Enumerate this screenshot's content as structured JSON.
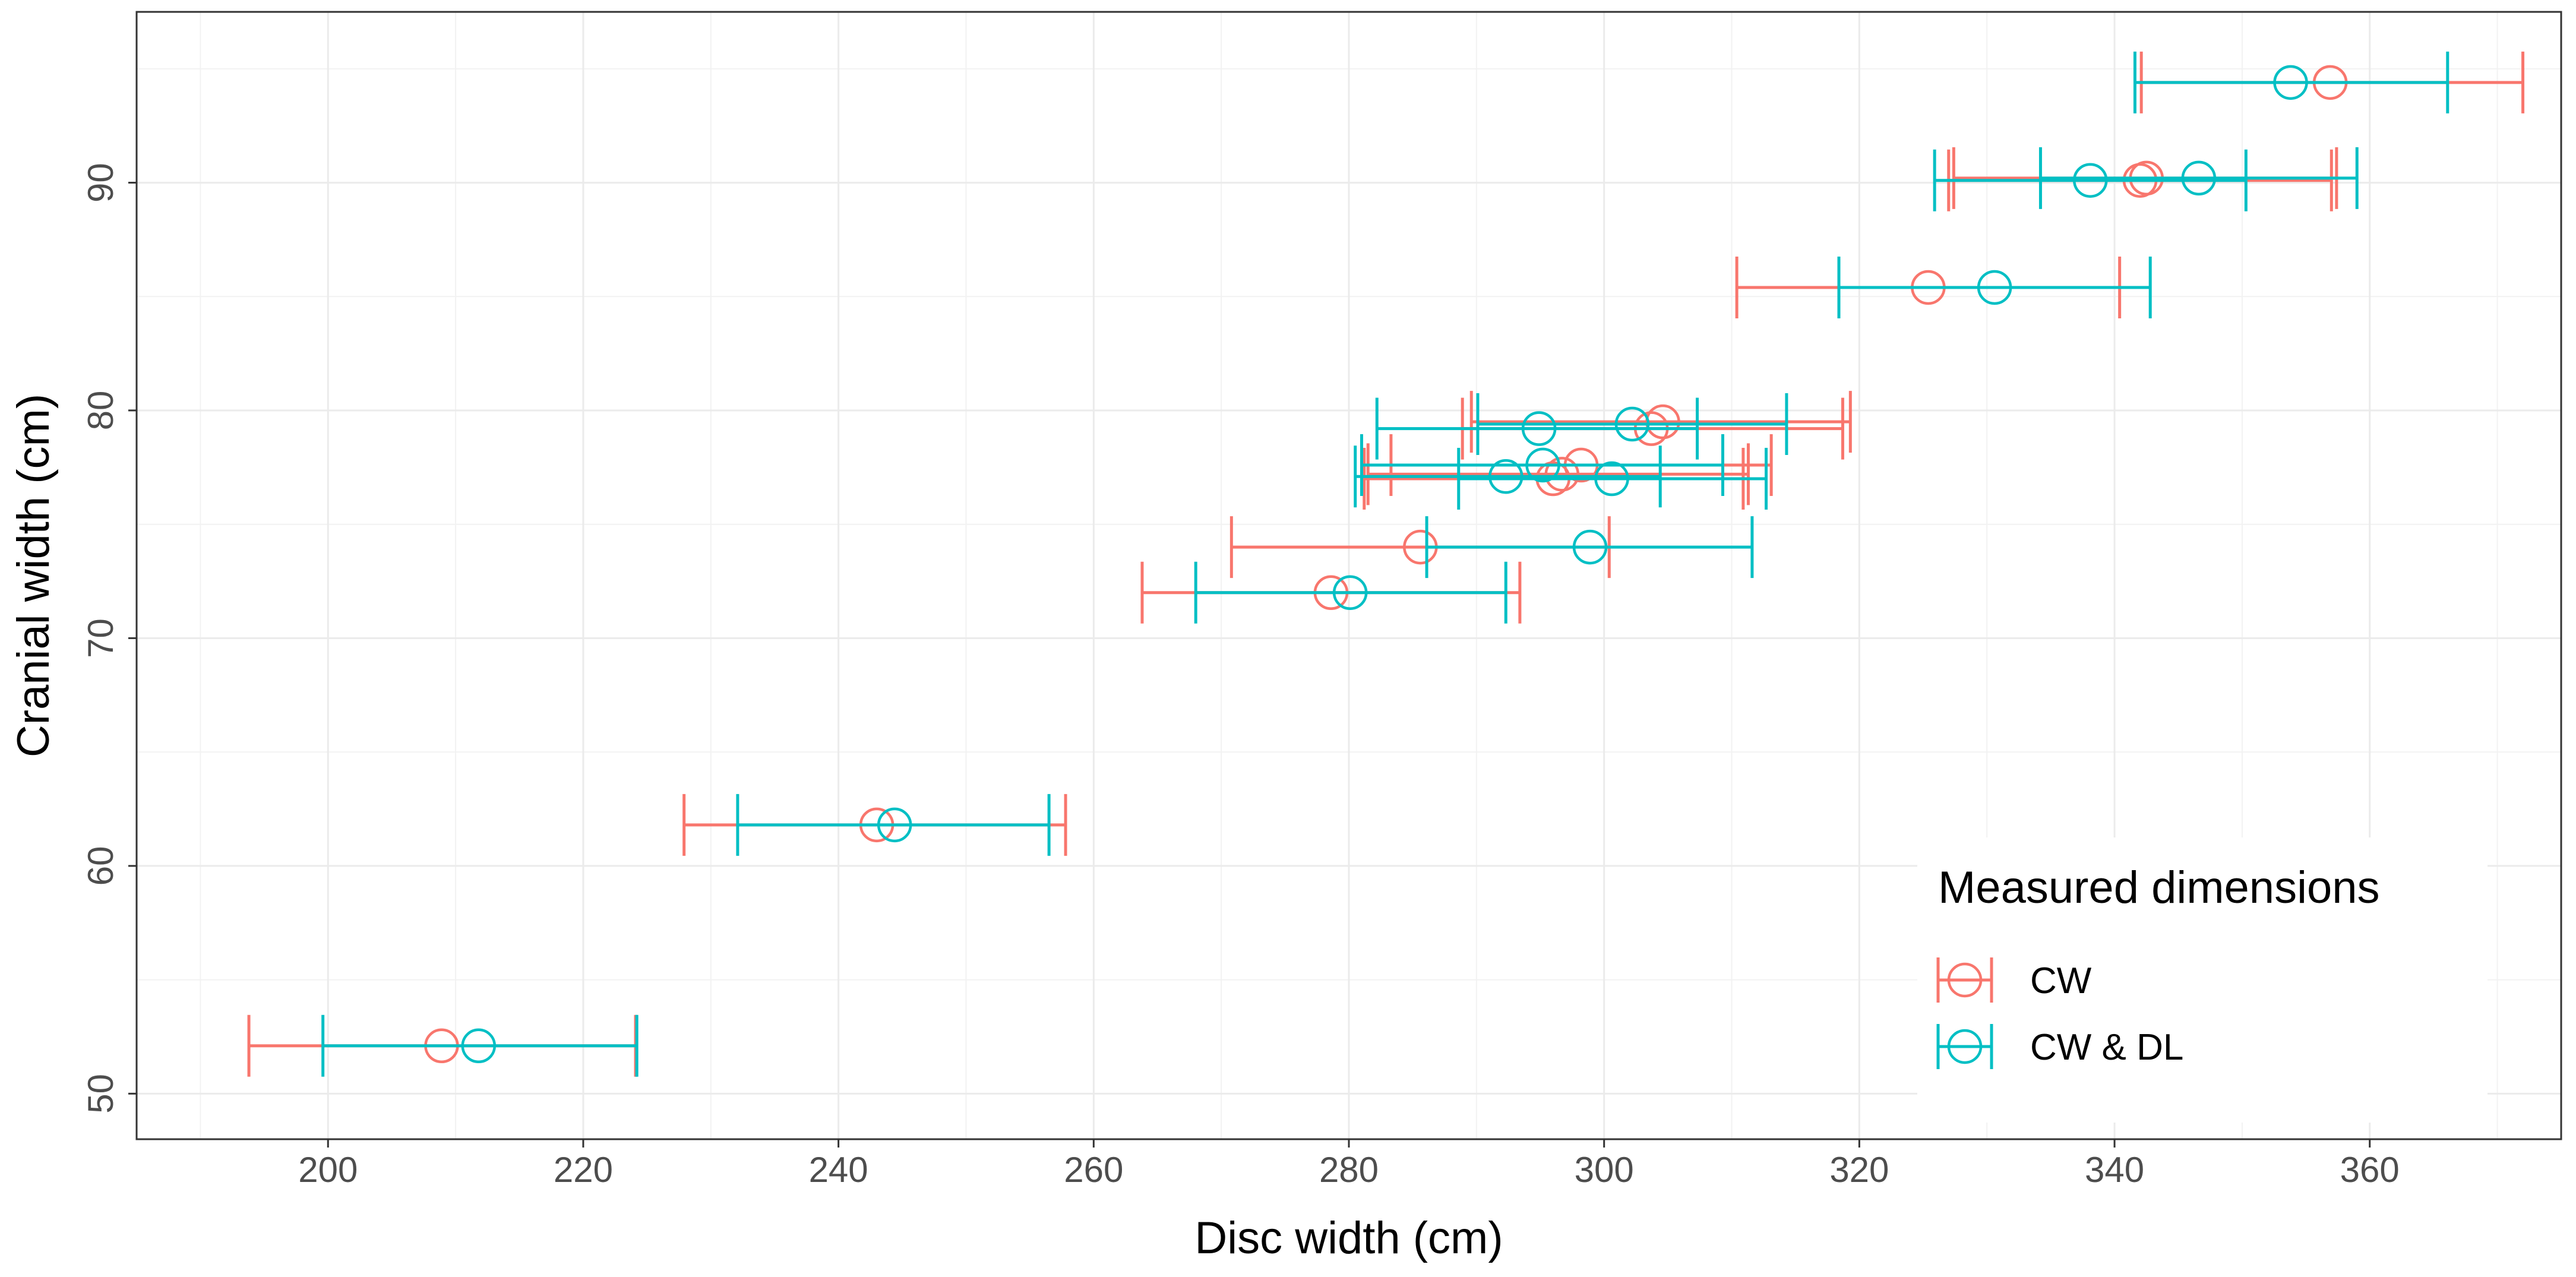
{
  "chart_data": {
    "type": "scatter",
    "title": "",
    "xlabel": "Disc width (cm)",
    "ylabel": "Cranial width (cm)",
    "xlim": [
      185,
      375
    ],
    "ylim": [
      48,
      97.5
    ],
    "xticks": [
      200,
      220,
      240,
      260,
      280,
      300,
      320,
      340,
      360
    ],
    "yticks": [
      50,
      60,
      70,
      80,
      90
    ],
    "xtick_labels": [
      "200",
      "220",
      "240",
      "260",
      "280",
      "300",
      "320",
      "340",
      "360"
    ],
    "ytick_labels": [
      "50",
      "60",
      "70",
      "80",
      "90"
    ],
    "grid": true,
    "point_shape": "open-circle",
    "error_bars": "horizontal",
    "legend": {
      "title": "Measured dimensions",
      "position": "bottom-right",
      "entries": [
        "CW",
        "CW & DL"
      ]
    },
    "series": [
      {
        "name": "CW",
        "color": "#F8766D",
        "points": [
          {
            "y": 52.1,
            "x": 208.9,
            "xmin": 193.8,
            "xmax": 224.1
          },
          {
            "y": 61.8,
            "x": 243.0,
            "xmin": 227.9,
            "xmax": 257.8
          },
          {
            "y": 72.0,
            "x": 278.6,
            "xmin": 263.8,
            "xmax": 293.4
          },
          {
            "y": 74.0,
            "x": 285.6,
            "xmin": 270.8,
            "xmax": 300.4
          },
          {
            "y": 77.0,
            "x": 296.0,
            "xmin": 281.2,
            "xmax": 310.9
          },
          {
            "y": 77.2,
            "x": 296.7,
            "xmin": 281.5,
            "xmax": 311.3
          },
          {
            "y": 77.6,
            "x": 298.2,
            "xmin": 283.3,
            "xmax": 313.1
          },
          {
            "y": 79.2,
            "x": 303.7,
            "xmin": 288.9,
            "xmax": 318.7
          },
          {
            "y": 79.5,
            "x": 304.6,
            "xmin": 289.6,
            "xmax": 319.3
          },
          {
            "y": 85.4,
            "x": 325.4,
            "xmin": 310.4,
            "xmax": 340.4
          },
          {
            "y": 90.1,
            "x": 342.0,
            "xmin": 327.0,
            "xmax": 357.0
          },
          {
            "y": 90.2,
            "x": 342.5,
            "xmin": 327.4,
            "xmax": 357.4
          },
          {
            "y": 94.4,
            "x": 356.9,
            "xmin": 342.1,
            "xmax": 372.0
          }
        ]
      },
      {
        "name": "CW & DL",
        "color": "#00BFC4",
        "points": [
          {
            "y": 52.1,
            "x": 211.8,
            "xmin": 199.6,
            "xmax": 224.2
          },
          {
            "y": 61.8,
            "x": 244.4,
            "xmin": 232.1,
            "xmax": 256.5
          },
          {
            "y": 72.0,
            "x": 280.1,
            "xmin": 268.0,
            "xmax": 292.3
          },
          {
            "y": 74.0,
            "x": 298.9,
            "xmin": 286.1,
            "xmax": 311.6
          },
          {
            "y": 77.1,
            "x": 292.3,
            "xmin": 280.5,
            "xmax": 304.4
          },
          {
            "y": 77.6,
            "x": 295.2,
            "xmin": 281.0,
            "xmax": 309.3
          },
          {
            "y": 77.0,
            "x": 300.6,
            "xmin": 288.6,
            "xmax": 312.7
          },
          {
            "y": 79.2,
            "x": 294.9,
            "xmin": 282.2,
            "xmax": 307.3
          },
          {
            "y": 79.4,
            "x": 302.2,
            "xmin": 290.1,
            "xmax": 314.3
          },
          {
            "y": 85.4,
            "x": 330.6,
            "xmin": 318.4,
            "xmax": 342.8
          },
          {
            "y": 90.1,
            "x": 338.1,
            "xmin": 325.9,
            "xmax": 350.3
          },
          {
            "y": 90.2,
            "x": 346.6,
            "xmin": 334.2,
            "xmax": 359.0
          },
          {
            "y": 94.4,
            "x": 353.8,
            "xmin": 341.6,
            "xmax": 366.1
          }
        ]
      }
    ]
  }
}
